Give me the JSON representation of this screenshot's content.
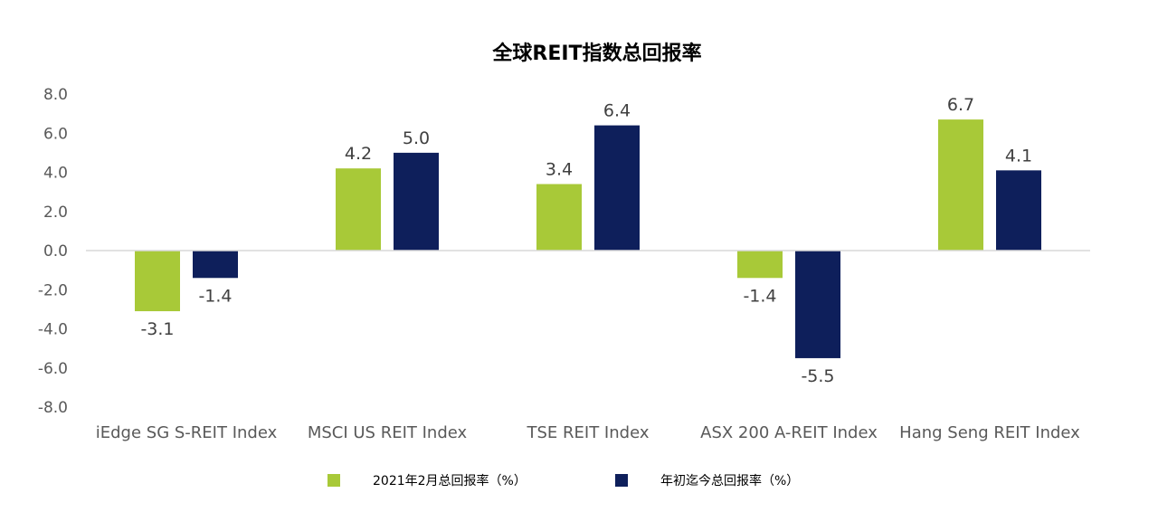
{
  "chart_data": {
    "type": "bar",
    "title": "全球REIT指数总回报率",
    "categories": [
      "iEdge SG S-REIT Index",
      "MSCI US REIT Index",
      "TSE REIT Index",
      "ASX 200 A-REIT Index",
      "Hang Seng REIT Index"
    ],
    "series": [
      {
        "name": "2021年2月总回报率（%）",
        "color": "#a8c938",
        "values": [
          -3.1,
          4.2,
          3.4,
          -1.4,
          6.7
        ],
        "labels": [
          "-3.1",
          "4.2",
          "3.4",
          "-1.4",
          "6.7"
        ]
      },
      {
        "name": "年初迄今总回报率（%）",
        "color": "#0e1f5b",
        "values": [
          -1.4,
          5.0,
          6.4,
          -5.5,
          4.1
        ],
        "labels": [
          "-1.4",
          "5.0",
          "6.4",
          "-5.5",
          "4.1"
        ]
      }
    ],
    "yticks": [
      "8.0",
      "6.0",
      "4.0",
      "2.0",
      "0.0",
      "-2.0",
      "-4.0",
      "-6.0",
      "-8.0"
    ],
    "ylim": [
      -8,
      8
    ],
    "xlabel": "",
    "ylabel": "",
    "grid": false,
    "legend_position": "bottom"
  }
}
